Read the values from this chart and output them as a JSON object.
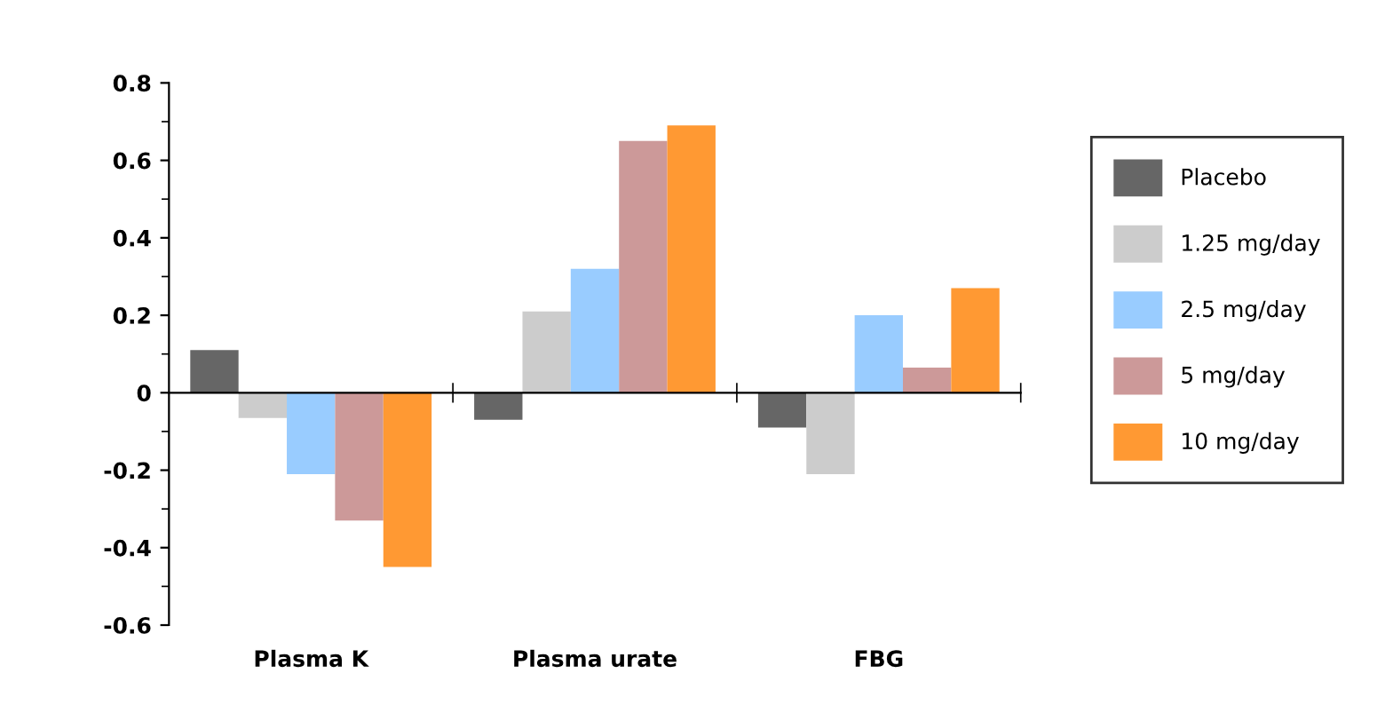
{
  "chart_data": {
    "type": "bar",
    "categories": [
      "Plasma K",
      "Plasma urate",
      "FBG"
    ],
    "series": [
      {
        "name": "Placebo",
        "color": "#666666",
        "values": [
          0.11,
          -0.07,
          -0.09
        ]
      },
      {
        "name": "1.25 mg/day",
        "color": "#cccccc",
        "values": [
          -0.065,
          0.21,
          -0.21
        ]
      },
      {
        "name": "2.5 mg/day",
        "color": "#99ccff",
        "values": [
          -0.21,
          0.32,
          0.2
        ]
      },
      {
        "name": "5 mg/day",
        "color": "#cc9999",
        "values": [
          -0.33,
          0.65,
          0.065
        ]
      },
      {
        "name": "10 mg/day",
        "color": "#ff9933",
        "values": [
          -0.45,
          0.69,
          0.27
        ]
      }
    ],
    "ylim": [
      -0.6,
      0.8
    ],
    "yticks": [
      -0.6,
      -0.4,
      -0.2,
      0,
      0.2,
      0.4,
      0.6,
      0.8
    ],
    "legend": "right"
  }
}
